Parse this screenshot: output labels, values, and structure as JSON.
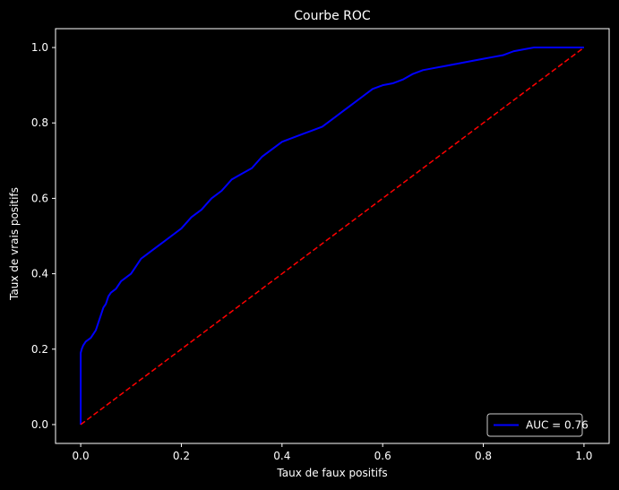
{
  "chart_data": {
    "type": "line",
    "title": "Courbe ROC",
    "xlabel": "Taux de faux positifs",
    "ylabel": "Taux de vrais positifs",
    "xlim": [
      -0.05,
      1.05
    ],
    "ylim": [
      -0.05,
      1.05
    ],
    "xticks": [
      0.0,
      0.2,
      0.4,
      0.6,
      0.8,
      1.0
    ],
    "yticks": [
      0.0,
      0.2,
      0.4,
      0.6,
      0.8,
      1.0
    ],
    "xtick_labels": [
      "0.0",
      "0.2",
      "0.4",
      "0.6",
      "0.8",
      "1.0"
    ],
    "ytick_labels": [
      "0.0",
      "0.2",
      "0.4",
      "0.6",
      "0.8",
      "1.0"
    ],
    "grid": false,
    "legend_position": "lower-right",
    "background": "#000000",
    "series": [
      {
        "name": "AUC = 0.76",
        "color": "#0000ff",
        "style": "solid",
        "x": [
          0.0,
          0.0,
          0.002,
          0.005,
          0.01,
          0.02,
          0.025,
          0.03,
          0.035,
          0.04,
          0.045,
          0.05,
          0.055,
          0.06,
          0.07,
          0.08,
          0.09,
          0.1,
          0.11,
          0.12,
          0.13,
          0.14,
          0.16,
          0.18,
          0.2,
          0.22,
          0.24,
          0.26,
          0.28,
          0.3,
          0.32,
          0.34,
          0.36,
          0.38,
          0.4,
          0.42,
          0.44,
          0.46,
          0.48,
          0.5,
          0.52,
          0.54,
          0.56,
          0.58,
          0.6,
          0.62,
          0.64,
          0.66,
          0.68,
          0.7,
          0.72,
          0.74,
          0.76,
          0.78,
          0.8,
          0.82,
          0.84,
          0.86,
          0.88,
          0.9,
          0.92,
          0.95,
          0.98,
          1.0
        ],
        "y": [
          0.0,
          0.19,
          0.2,
          0.21,
          0.22,
          0.23,
          0.24,
          0.25,
          0.27,
          0.29,
          0.31,
          0.32,
          0.34,
          0.35,
          0.36,
          0.38,
          0.39,
          0.4,
          0.42,
          0.44,
          0.45,
          0.46,
          0.48,
          0.5,
          0.52,
          0.55,
          0.57,
          0.6,
          0.62,
          0.65,
          0.665,
          0.68,
          0.71,
          0.73,
          0.75,
          0.76,
          0.77,
          0.78,
          0.79,
          0.81,
          0.83,
          0.85,
          0.87,
          0.89,
          0.9,
          0.905,
          0.915,
          0.93,
          0.94,
          0.945,
          0.95,
          0.955,
          0.96,
          0.965,
          0.97,
          0.975,
          0.98,
          0.99,
          0.995,
          1.0,
          1.0,
          1.0,
          1.0,
          1.0
        ]
      },
      {
        "color": "#ff0000",
        "style": "dashed",
        "x": [
          0.0,
          1.0
        ],
        "y": [
          0.0,
          1.0
        ]
      }
    ]
  }
}
